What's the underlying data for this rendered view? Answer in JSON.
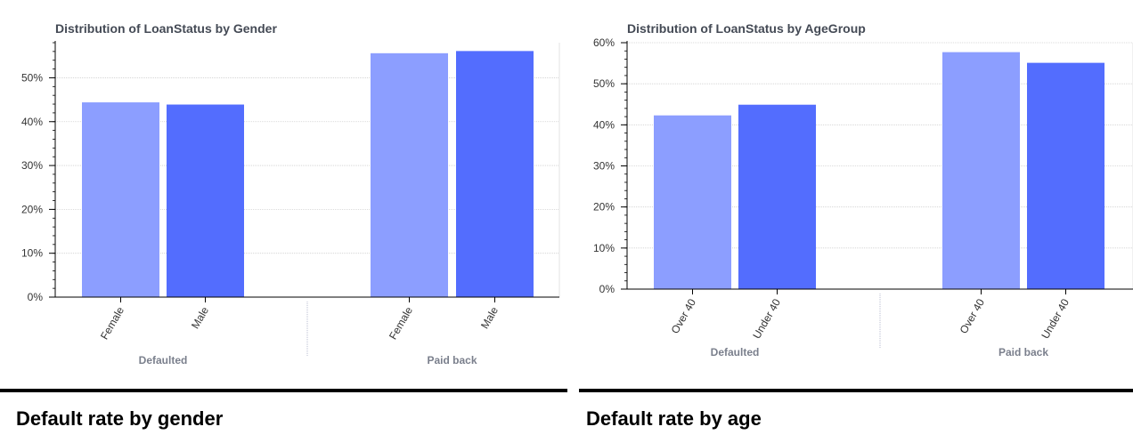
{
  "chart_data": [
    {
      "type": "bar",
      "title": "Distribution of LoanStatus by Gender",
      "groups": [
        "Defaulted",
        "Paid back"
      ],
      "categories": [
        "Female",
        "Male"
      ],
      "series": [
        {
          "values": [
            44.4,
            55.6
          ]
        },
        {
          "values": [
            43.9,
            56.1
          ]
        }
      ],
      "ylim": [
        0,
        58
      ],
      "yticks": [
        "0%",
        "10%",
        "20%",
        "30%",
        "40%",
        "50%"
      ],
      "ytick_values": [
        0,
        10,
        20,
        30,
        40,
        50
      ],
      "grid": true,
      "colors": [
        "#8c9eff",
        "#536dfe"
      ]
    },
    {
      "type": "bar",
      "title": "Distribution of LoanStatus by AgeGroup",
      "groups": [
        "Defaulted",
        "Paid back"
      ],
      "categories": [
        "Over 40",
        "Under 40"
      ],
      "series": [
        {
          "values": [
            42.3,
            57.7
          ]
        },
        {
          "values": [
            44.9,
            55.1
          ]
        }
      ],
      "ylim": [
        0,
        60
      ],
      "yticks": [
        "0%",
        "10%",
        "20%",
        "30%",
        "40%",
        "50%",
        "60%"
      ],
      "ytick_values": [
        0,
        10,
        20,
        30,
        40,
        50,
        60
      ],
      "grid": true,
      "colors": [
        "#8c9eff",
        "#536dfe"
      ]
    }
  ],
  "captions": [
    "Default rate by gender",
    "Default rate by age"
  ]
}
